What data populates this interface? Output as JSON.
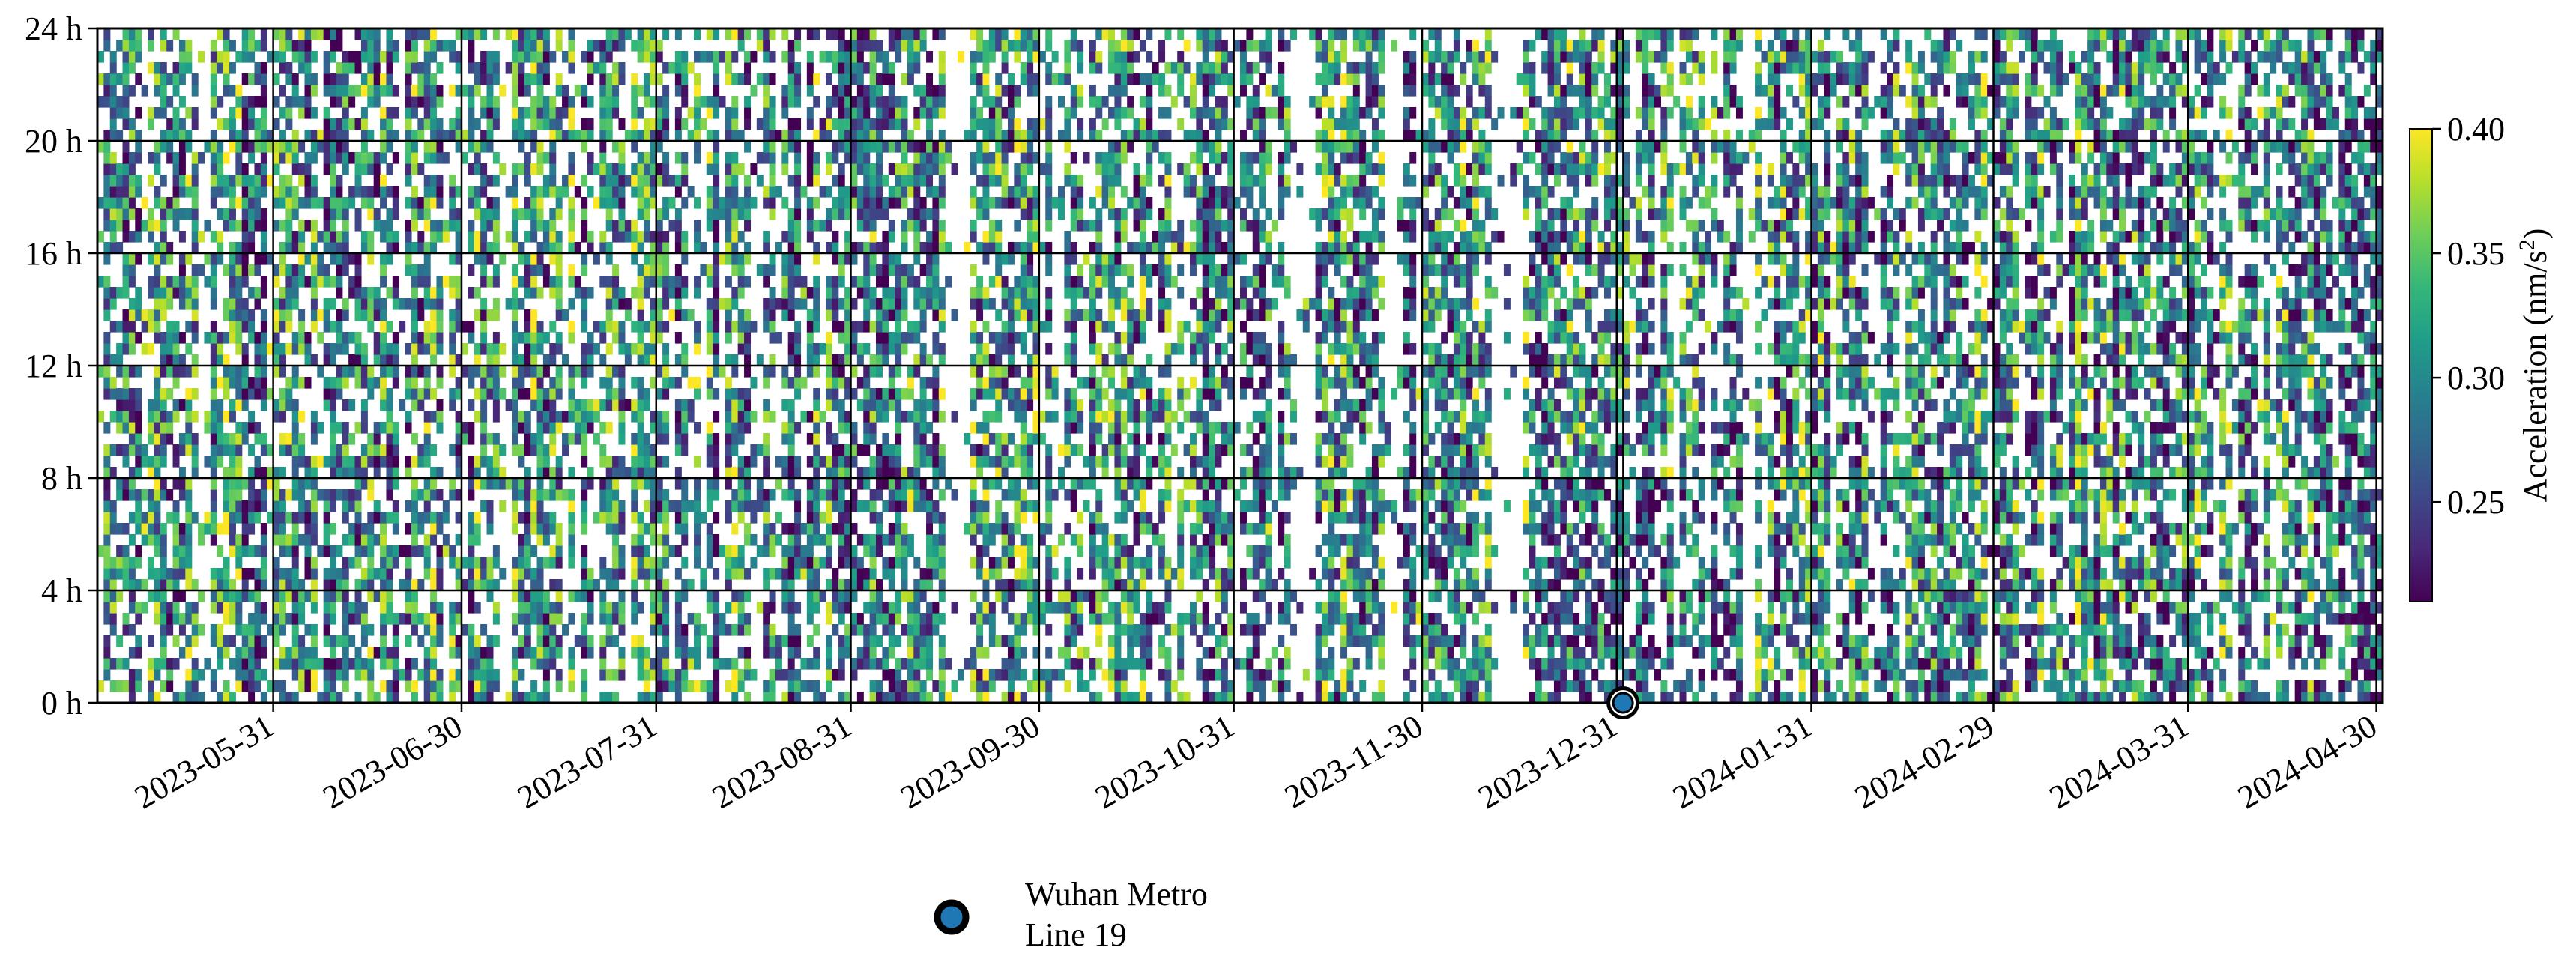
{
  "chart_data": {
    "type": "heatmap",
    "title": "",
    "xlabel": "",
    "ylabel": "",
    "x_range": [
      "2023-05-03",
      "2024-05-01"
    ],
    "x_ticks": [
      "2023-05-31",
      "2023-06-30",
      "2023-07-31",
      "2023-08-31",
      "2023-09-30",
      "2023-10-31",
      "2023-11-30",
      "2023-12-31",
      "2024-01-31",
      "2024-02-29",
      "2024-03-31",
      "2024-04-30"
    ],
    "y_range": [
      0,
      24
    ],
    "y_ticks": [
      {
        "value": 0,
        "label": "0 h"
      },
      {
        "value": 4,
        "label": "4 h"
      },
      {
        "value": 8,
        "label": "8 h"
      },
      {
        "value": 12,
        "label": "12 h"
      },
      {
        "value": 16,
        "label": "16 h"
      },
      {
        "value": 20,
        "label": "20 h"
      },
      {
        "value": 24,
        "label": "24 h"
      }
    ],
    "grid": true,
    "colormap": "viridis",
    "colorbar": {
      "label_main": "Acceleration (nm/s",
      "label_sup": "2",
      "label_end": ")",
      "range": [
        0.21,
        0.4
      ],
      "ticks": [
        {
          "value": 0.25,
          "label": "0.25"
        },
        {
          "value": 0.3,
          "label": "0.30"
        },
        {
          "value": 0.35,
          "label": "0.35"
        },
        {
          "value": 0.4,
          "label": "0.40"
        }
      ]
    },
    "markers": [
      {
        "date": "2024-01-01",
        "hour": 0,
        "label_line1": "Wuhan Metro",
        "label_line2": "Line 19",
        "color": "#1f77b4"
      }
    ],
    "legend": {
      "placement": "bottom-center"
    },
    "colors": {
      "grid": "#000000",
      "marker_fill": "#1f77b4",
      "marker_edge": "#000000",
      "missing": "#ffffff"
    }
  }
}
